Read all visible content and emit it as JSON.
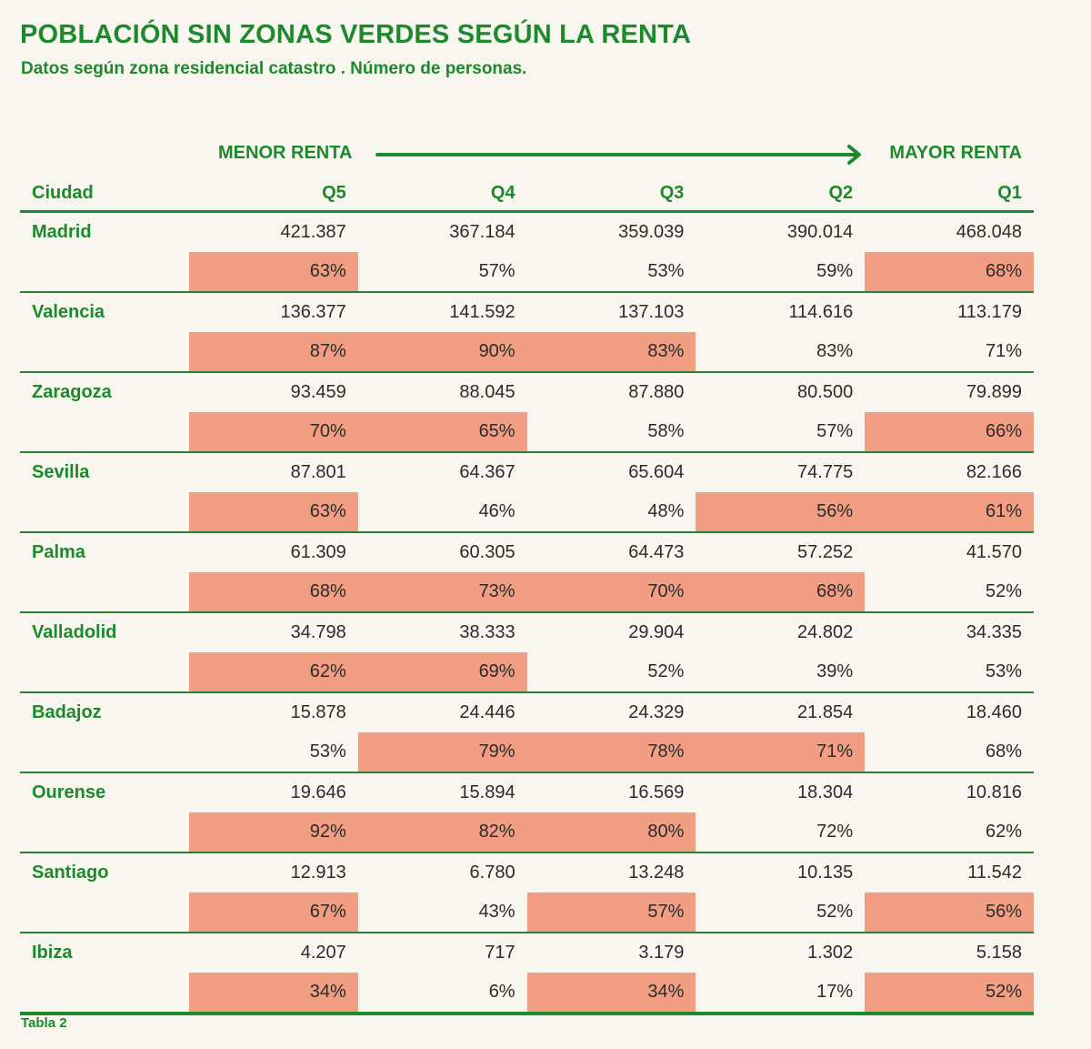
{
  "title": "POBLACIÓN SIN ZONAS VERDES SEGÚN LA RENTA",
  "subtitle": "Datos según zona residencial catastro . Número de personas.",
  "renta_menor": "MENOR RENTA",
  "renta_mayor": "MAYOR RENTA",
  "headers": [
    "Ciudad",
    "Q5",
    "Q4",
    "Q3",
    "Q2",
    "Q1"
  ],
  "highlight_color": "#f29e83",
  "accent_color": "#1c8a2c",
  "rows": [
    {
      "city": "Madrid",
      "values": [
        "421.387",
        "367.184",
        "359.039",
        "390.014",
        "468.048"
      ],
      "pcts": [
        "63%",
        "57%",
        "53%",
        "59%",
        "68%"
      ],
      "highlighted": [
        true,
        false,
        false,
        false,
        true
      ]
    },
    {
      "city": "Valencia",
      "values": [
        "136.377",
        "141.592",
        "137.103",
        "114.616",
        "113.179"
      ],
      "pcts": [
        "87%",
        "90%",
        "83%",
        "83%",
        "71%"
      ],
      "highlighted": [
        true,
        true,
        true,
        false,
        false
      ]
    },
    {
      "city": "Zaragoza",
      "values": [
        "93.459",
        "88.045",
        "87.880",
        "80.500",
        "79.899"
      ],
      "pcts": [
        "70%",
        "65%",
        "58%",
        "57%",
        "66%"
      ],
      "highlighted": [
        true,
        true,
        false,
        false,
        true
      ]
    },
    {
      "city": "Sevilla",
      "values": [
        "87.801",
        "64.367",
        "65.604",
        "74.775",
        "82.166"
      ],
      "pcts": [
        "63%",
        "46%",
        "48%",
        "56%",
        "61%"
      ],
      "highlighted": [
        true,
        false,
        false,
        true,
        true
      ]
    },
    {
      "city": "Palma",
      "values": [
        "61.309",
        "60.305",
        "64.473",
        "57.252",
        "41.570"
      ],
      "pcts": [
        "68%",
        "73%",
        "70%",
        "68%",
        "52%"
      ],
      "highlighted": [
        true,
        true,
        true,
        true,
        false
      ]
    },
    {
      "city": "Valladolid",
      "values": [
        "34.798",
        "38.333",
        "29.904",
        "24.802",
        "34.335"
      ],
      "pcts": [
        "62%",
        "69%",
        "52%",
        "39%",
        "53%"
      ],
      "highlighted": [
        true,
        true,
        false,
        false,
        false
      ]
    },
    {
      "city": "Badajoz",
      "values": [
        "15.878",
        "24.446",
        "24.329",
        "21.854",
        "18.460"
      ],
      "pcts": [
        "53%",
        "79%",
        "78%",
        "71%",
        "68%"
      ],
      "highlighted": [
        false,
        true,
        true,
        true,
        false
      ]
    },
    {
      "city": "Ourense",
      "values": [
        "19.646",
        "15.894",
        "16.569",
        "18.304",
        "10.816"
      ],
      "pcts": [
        "92%",
        "82%",
        "80%",
        "72%",
        "62%"
      ],
      "highlighted": [
        true,
        true,
        true,
        false,
        false
      ]
    },
    {
      "city": "Santiago",
      "values": [
        "12.913",
        "6.780",
        "13.248",
        "10.135",
        "11.542"
      ],
      "pcts": [
        "67%",
        "43%",
        "57%",
        "52%",
        "56%"
      ],
      "highlighted": [
        true,
        false,
        true,
        false,
        true
      ]
    },
    {
      "city": "Ibiza",
      "values": [
        "4.207",
        "717",
        "3.179",
        "1.302",
        "5.158"
      ],
      "pcts": [
        "34%",
        "6%",
        "34%",
        "17%",
        "52%"
      ],
      "highlighted": [
        true,
        false,
        true,
        false,
        true
      ]
    }
  ],
  "footer": "Tabla 2"
}
